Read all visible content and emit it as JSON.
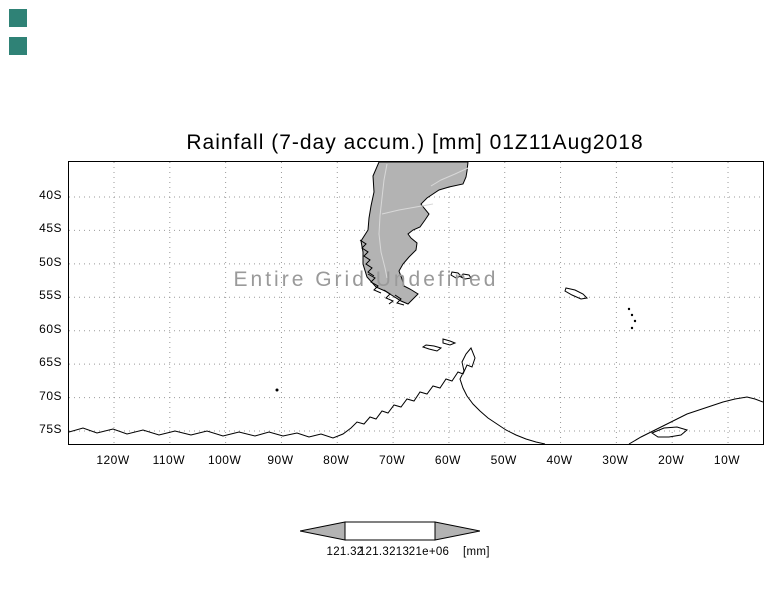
{
  "title": "Rainfall (7-day accum.) [mm] 01Z11Aug2018",
  "map": {
    "overlay_message": "Entire Grid Undefined",
    "lat_labels": [
      "40S",
      "45S",
      "50S",
      "55S",
      "60S",
      "65S",
      "70S",
      "75S"
    ],
    "lon_labels": [
      "120W",
      "110W",
      "100W",
      "90W",
      "80W",
      "70W",
      "60W",
      "50W",
      "40W",
      "30W",
      "20W",
      "10W"
    ]
  },
  "colorbar": {
    "labels": [
      "121.32",
      "121.3213",
      "21e+06"
    ],
    "unit": "[mm]"
  },
  "colors": {
    "land_fill": "#b3b3b3",
    "coast_line": "#000000",
    "grid_line": "#999999",
    "message_gray": "#9a9a9a",
    "accent_teal": "#2f8276",
    "interior_line": "#d8d8d8"
  }
}
